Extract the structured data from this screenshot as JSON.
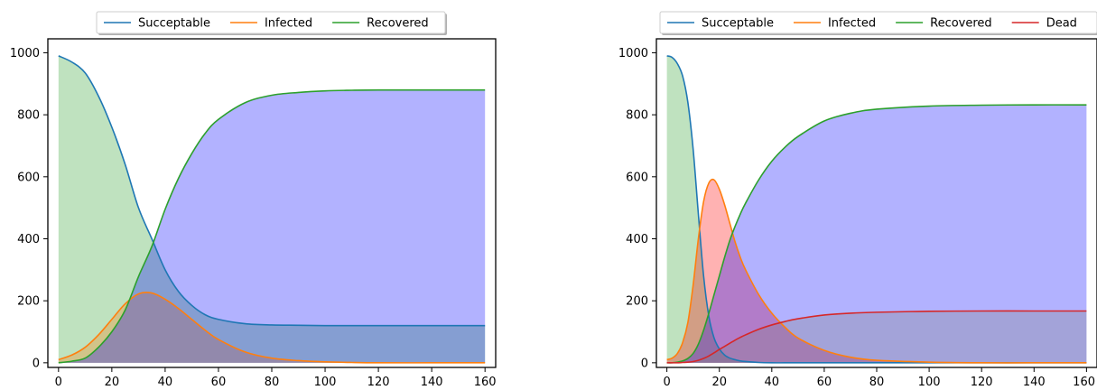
{
  "chart_data": [
    {
      "type": "area",
      "title": "",
      "xlabel": "",
      "ylabel": "",
      "xlim": [
        -4,
        164
      ],
      "ylim": [
        -15,
        1045
      ],
      "xticks": [
        0,
        20,
        40,
        60,
        80,
        100,
        120,
        140,
        160
      ],
      "yticks": [
        0,
        200,
        400,
        600,
        800,
        1000
      ],
      "legend_position": "top-center, above plot",
      "x": [
        0,
        5,
        10,
        15,
        20,
        25,
        30,
        35,
        40,
        45,
        50,
        55,
        60,
        70,
        80,
        90,
        100,
        110,
        120,
        140,
        160
      ],
      "series": [
        {
          "name": "Succeptable",
          "color": "#1f77b4",
          "fill": "#2ca02c",
          "values": [
            990,
            970,
            935,
            860,
            760,
            640,
            500,
            400,
            300,
            230,
            185,
            155,
            140,
            126,
            122,
            121,
            120,
            120,
            120,
            120,
            120
          ]
        },
        {
          "name": "Infected",
          "color": "#ff7f0e",
          "fill": "#ff7f0e",
          "values": [
            10,
            25,
            50,
            90,
            140,
            190,
            222,
            225,
            205,
            175,
            140,
            105,
            75,
            35,
            15,
            7,
            3,
            1,
            0,
            0,
            0
          ]
        },
        {
          "name": "Recovered",
          "color": "#2ca02c",
          "fill": "#0000ff",
          "values": [
            0,
            5,
            15,
            50,
            100,
            170,
            278,
            375,
            495,
            595,
            675,
            740,
            785,
            839,
            863,
            872,
            877,
            879,
            880,
            880,
            880
          ]
        }
      ]
    },
    {
      "type": "area",
      "title": "",
      "xlabel": "",
      "ylabel": "",
      "xlim": [
        -4,
        164
      ],
      "ylim": [
        -15,
        1045
      ],
      "xticks": [
        0,
        20,
        40,
        60,
        80,
        100,
        120,
        140,
        160
      ],
      "yticks": [
        0,
        200,
        400,
        600,
        800,
        1000
      ],
      "legend_position": "top-center, above plot",
      "x": [
        0,
        2,
        4,
        6,
        8,
        10,
        12,
        14,
        16,
        18,
        20,
        22,
        24,
        26,
        28,
        30,
        35,
        40,
        45,
        50,
        60,
        70,
        80,
        100,
        120,
        140,
        160
      ],
      "series": [
        {
          "name": "Succeptable",
          "color": "#1f77b4",
          "fill": "#2ca02c",
          "values": [
            990,
            985,
            965,
            925,
            840,
            690,
            480,
            280,
            150,
            80,
            45,
            25,
            15,
            10,
            6,
            4,
            1,
            0,
            0,
            0,
            0,
            0,
            0,
            0,
            0,
            0,
            0
          ]
        },
        {
          "name": "Infected",
          "color": "#ff7f0e",
          "fill": "#ff0000",
          "values": [
            10,
            15,
            30,
            65,
            130,
            250,
            400,
            520,
            580,
            590,
            560,
            510,
            450,
            390,
            340,
            300,
            220,
            160,
            115,
            80,
            40,
            18,
            8,
            2,
            0,
            0,
            0
          ]
        },
        {
          "name": "Recovered",
          "color": "#2ca02c",
          "fill": "#0000ff",
          "values": [
            0,
            0,
            2,
            6,
            14,
            30,
            60,
            105,
            160,
            220,
            280,
            340,
            395,
            440,
            480,
            515,
            590,
            650,
            695,
            730,
            780,
            805,
            818,
            828,
            831,
            832,
            832
          ]
        },
        {
          "name": "Dead",
          "color": "#d62728",
          "fill": "#808080",
          "values": [
            0,
            0,
            0,
            1,
            2,
            4,
            8,
            14,
            22,
            32,
            43,
            53,
            63,
            73,
            82,
            90,
            108,
            122,
            133,
            142,
            154,
            160,
            163,
            166,
            167,
            167,
            167
          ]
        }
      ]
    }
  ]
}
